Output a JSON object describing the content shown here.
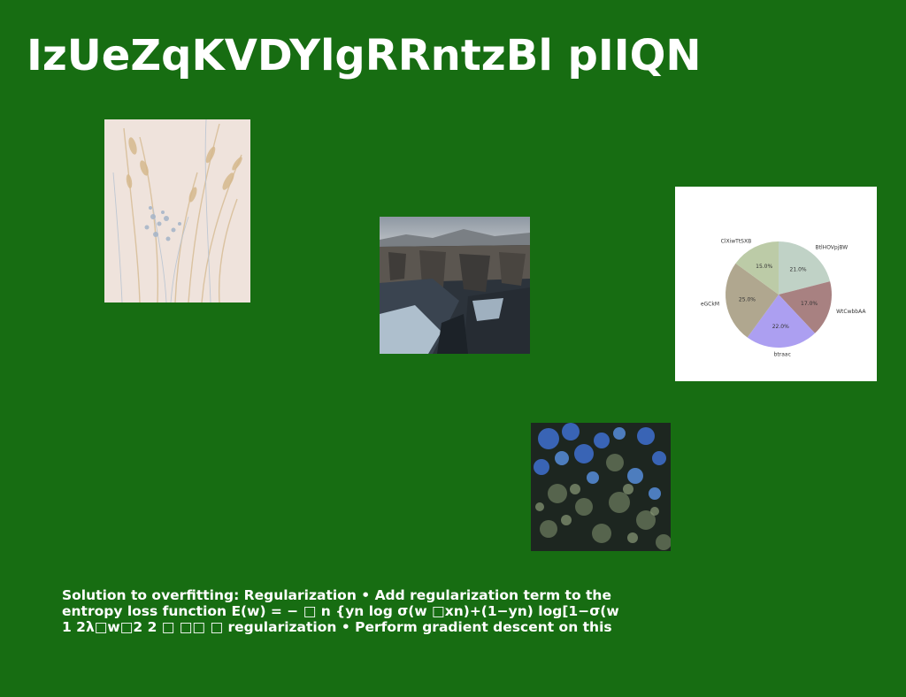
{
  "slide": {
    "title": "IzUeZqKVDYlgRRntzBl pIIQN",
    "background_color": "#176d12",
    "body_lines": [
      "Solution to overfitting: Regularization • Add regularization term to the",
      "entropy loss function E(w) = − □ n {yn log σ(w □xn)+(1−yn) log[1−σ(w",
      "1 2λ□w□2 2 □ □□ □ regularization • Perform gradient descent on this"
    ]
  },
  "images": {
    "grass": "photo-dry-grass-on-cream",
    "canyon": "photo-dark-rock-canyon",
    "forest": "photo-aerial-forest"
  },
  "chart_data": {
    "type": "pie",
    "title": "",
    "slices": [
      {
        "label": "BtlHOVpjBW",
        "value": 21.0,
        "pct_label": "21.0%",
        "color": "#c0d2c6"
      },
      {
        "label": "WtCwbbAA",
        "value": 17.0,
        "pct_label": "17.0%",
        "color": "#a88181"
      },
      {
        "label": "btraac",
        "value": 22.0,
        "pct_label": "22.0%",
        "color": "#ac9ff1"
      },
      {
        "label": "eGCkM",
        "value": 25.0,
        "pct_label": "25.0%",
        "color": "#b0a78f"
      },
      {
        "label": "ClXiwTtSXB",
        "value": 15.0,
        "pct_label": "15.0%",
        "color": "#bccba7"
      }
    ],
    "start_angle_deg": 90,
    "direction": "clockwise",
    "legend": "none"
  }
}
